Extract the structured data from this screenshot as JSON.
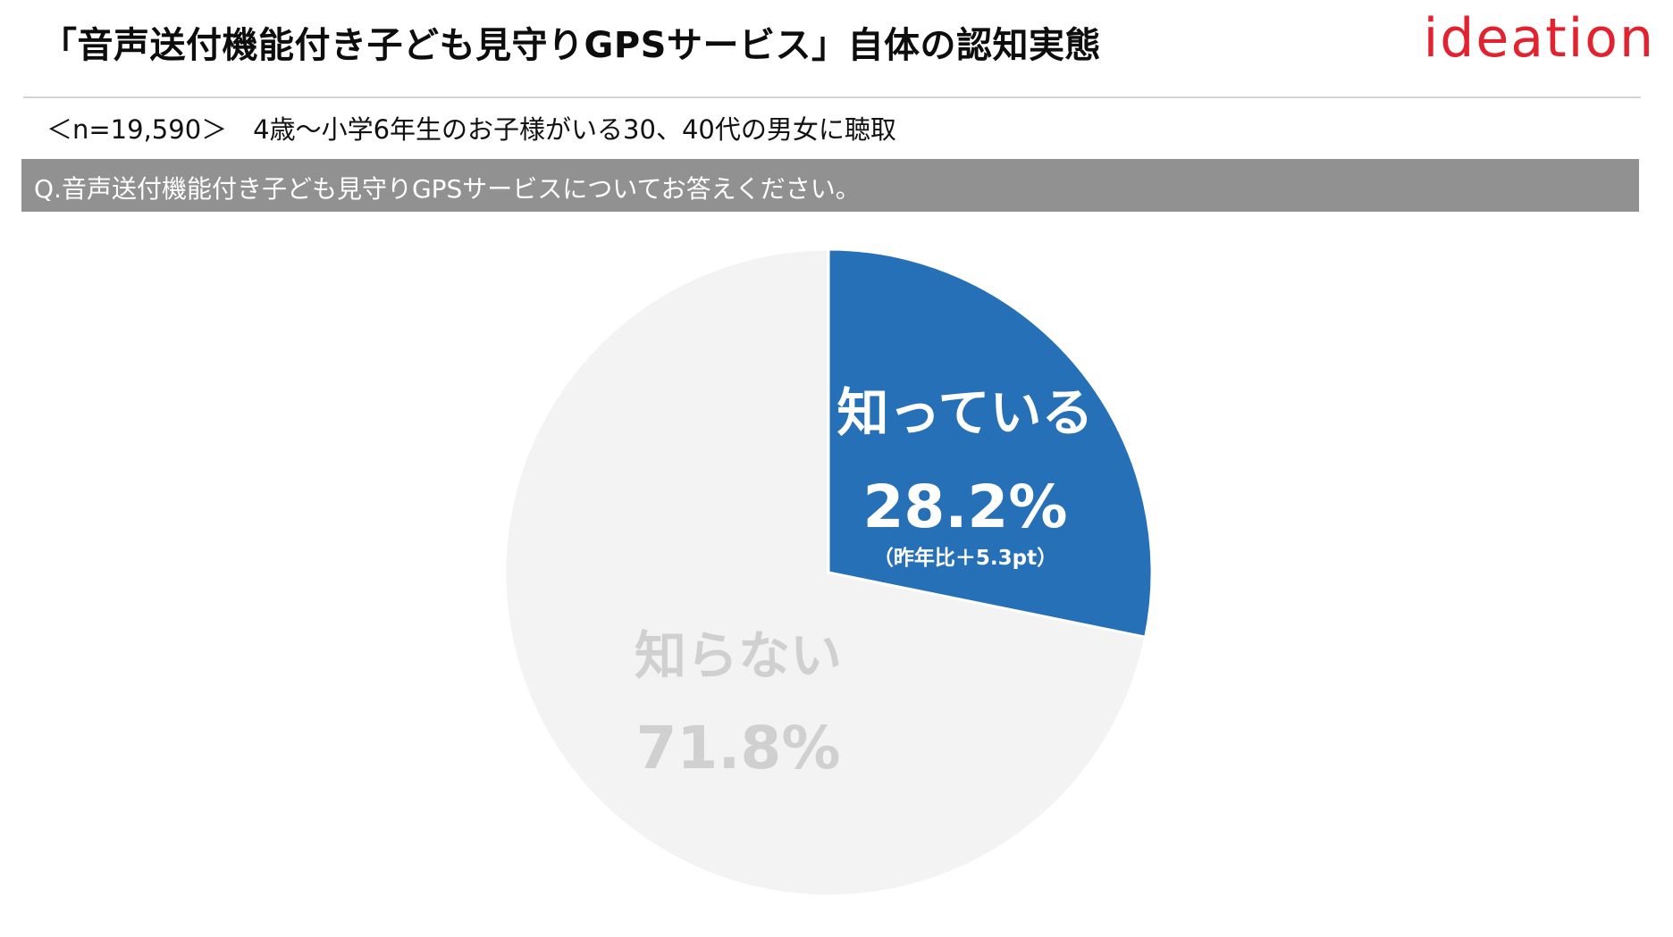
{
  "header": {
    "title": "「音声送付機能付き子ども見守りGPSサービス」自体の認知実態",
    "logo": "ideation"
  },
  "sample_note": "＜n=19,590＞　4歳～小学6年生のお子様がいる30、40代の男女に聴取",
  "question": "Q.音声送付機能付き子ども見守りGPSサービスについてお答えください。",
  "colors": {
    "known": "#2670b8",
    "unknown": "#f3f3f3",
    "unknown_label": "#d0d0d0",
    "logo": "#e2232f",
    "question_bar": "#919191"
  },
  "chart_data": {
    "type": "pie",
    "categories": [
      "知っている",
      "知らない"
    ],
    "values": [
      28.2,
      71.8
    ],
    "value_labels": [
      "28.2%",
      "71.8%"
    ],
    "annotations": [
      "（昨年比＋5.3pt）"
    ],
    "start_angle_deg": 0,
    "direction": "clockwise",
    "legend": "none"
  }
}
